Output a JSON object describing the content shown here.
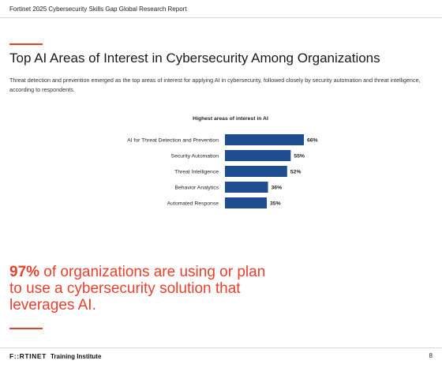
{
  "header": {
    "report_title": "Fortinet 2025 Cybersecurity Skills Gap Global Research Report"
  },
  "main": {
    "title": "Top AI Areas of Interest in Cybersecurity Among Organizations",
    "intro": "Threat detection and prevention emerged as the top areas of interest for applying AI in cybersecurity, followed closely by security automation and threat intelligence, according to respondents."
  },
  "chart_data": {
    "type": "bar",
    "orientation": "horizontal",
    "title": "Highest areas of interest in AI",
    "categories": [
      "AI for Threat Detection and Prevention",
      "Security Automation",
      "Threat Intelligence",
      "Behavior Analytics",
      "Automated Response"
    ],
    "values": [
      66,
      55,
      52,
      36,
      35
    ],
    "value_labels": [
      "66%",
      "55%",
      "52%",
      "36%",
      "35%"
    ],
    "xlim": [
      0,
      66
    ],
    "bar_color": "#1e4e8f"
  },
  "callout": {
    "highlight": "97%",
    "text": " of organizations are using or plan to use a cybersecurity solution that leverages AI."
  },
  "footer": {
    "logo": "F::RTINET",
    "logo_sub": "Training Institute",
    "page_number": "8"
  },
  "colors": {
    "accent": "#e8402f",
    "bar": "#1e4e8f"
  }
}
